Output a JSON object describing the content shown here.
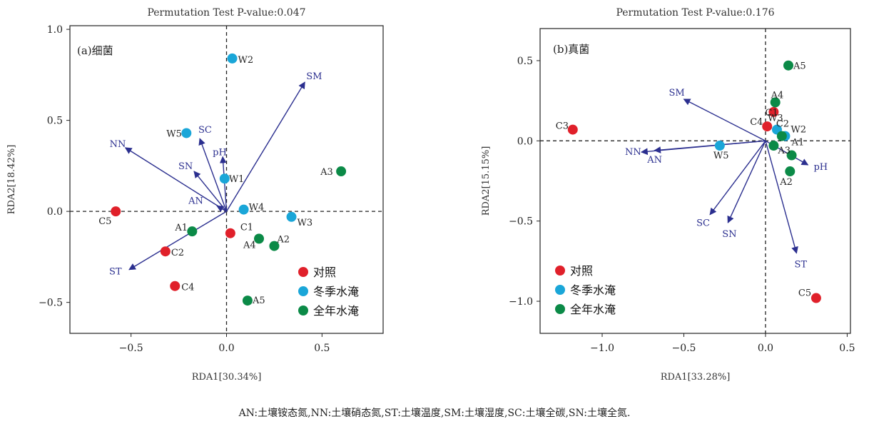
{
  "colors": {
    "control": "#e0202a",
    "winter": "#1aa6d8",
    "yearround": "#0b8a47",
    "vector": "#2b2f8f"
  },
  "chart_data": [
    {
      "type": "scatter",
      "title": "Permutation Test P-value:0.047",
      "panel_label": "(a)细菌",
      "xlabel": "RDA1[30.34%]",
      "ylabel": "RDA2[18.42%]",
      "xlim": [
        -0.82,
        0.82
      ],
      "ylim": [
        -0.67,
        1.02
      ],
      "xticks": [
        -0.5,
        0.0,
        0.5
      ],
      "xtick_labels": [
        "−0.5",
        "0.0",
        "0.5"
      ],
      "yticks": [
        -0.5,
        0.0,
        0.5,
        1.0
      ],
      "ytick_labels": [
        "−0.5",
        "0.0",
        "0.5",
        "1.0"
      ],
      "reference_lines": "dashed at x=0 and y=0",
      "legend_position": "bottom-right",
      "series": [
        {
          "name": "对照",
          "color_key": "control",
          "points": [
            {
              "label": "C1",
              "x": 0.02,
              "y": -0.12
            },
            {
              "label": "C2",
              "x": -0.32,
              "y": -0.22
            },
            {
              "label": "C4",
              "x": -0.27,
              "y": -0.41
            },
            {
              "label": "C5",
              "x": -0.58,
              "y": 0.0
            }
          ]
        },
        {
          "name": "冬季水淹",
          "color_key": "winter",
          "points": [
            {
              "label": "W1",
              "x": -0.01,
              "y": 0.18
            },
            {
              "label": "W2",
              "x": 0.03,
              "y": 0.84
            },
            {
              "label": "W3",
              "x": 0.34,
              "y": -0.03
            },
            {
              "label": "W4",
              "x": 0.09,
              "y": 0.01
            },
            {
              "label": "W5",
              "x": -0.21,
              "y": 0.43
            }
          ]
        },
        {
          "name": "全年水淹",
          "color_key": "yearround",
          "points": [
            {
              "label": "A1",
              "x": -0.18,
              "y": -0.11
            },
            {
              "label": "A2",
              "x": 0.25,
              "y": -0.19
            },
            {
              "label": "A3",
              "x": 0.6,
              "y": 0.22
            },
            {
              "label": "A4",
              "x": 0.17,
              "y": -0.15
            },
            {
              "label": "A5",
              "x": 0.11,
              "y": -0.49
            }
          ]
        }
      ],
      "vectors": [
        {
          "label": "SM",
          "x": 0.41,
          "y": 0.71
        },
        {
          "label": "NN",
          "x": -0.53,
          "y": 0.35
        },
        {
          "label": "SC",
          "x": -0.14,
          "y": 0.4
        },
        {
          "label": "pH",
          "x": -0.02,
          "y": 0.3
        },
        {
          "label": "SN",
          "x": -0.17,
          "y": 0.22
        },
        {
          "label": "AN",
          "x": -0.05,
          "y": 0.03
        },
        {
          "label": "ST",
          "x": -0.51,
          "y": -0.32
        }
      ]
    },
    {
      "type": "scatter",
      "title": "Permutation Test P-value:0.176",
      "panel_label": "(b)真菌",
      "xlabel": "RDA1[33.28%]",
      "ylabel": "RDA2[15.15%]",
      "xlim": [
        -1.38,
        0.52
      ],
      "ylim": [
        -1.2,
        0.7
      ],
      "xticks": [
        -1.0,
        -0.5,
        0.0,
        0.5
      ],
      "xtick_labels": [
        "−1.0",
        "−0.5",
        "0.0",
        "0.5"
      ],
      "yticks": [
        -1.0,
        -0.5,
        0.0,
        0.5
      ],
      "ytick_labels": [
        "−1.0",
        "−0.5",
        "0.0",
        "0.5"
      ],
      "reference_lines": "dashed at x=0 and y=0",
      "legend_position": "bottom-left",
      "series": [
        {
          "name": "对照",
          "color_key": "control",
          "points": [
            {
              "label": "C1",
              "x": 0.05,
              "y": 0.18
            },
            {
              "label": "C3",
              "x": -1.18,
              "y": 0.07
            },
            {
              "label": "C4",
              "x": 0.01,
              "y": 0.09
            },
            {
              "label": "C5",
              "x": 0.31,
              "y": -0.98
            }
          ]
        },
        {
          "name": "冬季水淹",
          "color_key": "winter",
          "points": [
            {
              "label": "W2",
              "x": 0.12,
              "y": 0.03
            },
            {
              "label": "W3",
              "x": 0.07,
              "y": 0.07
            },
            {
              "label": "W5",
              "x": -0.28,
              "y": -0.03
            }
          ]
        },
        {
          "name": "全年水淹",
          "color_key": "yearround",
          "points": [
            {
              "label": "A1",
              "x": 0.16,
              "y": -0.09
            },
            {
              "label": "A2",
              "x": 0.15,
              "y": -0.19
            },
            {
              "label": "A3",
              "x": 0.05,
              "y": -0.03
            },
            {
              "label": "A4",
              "x": 0.06,
              "y": 0.24
            },
            {
              "label": "A5",
              "x": 0.14,
              "y": 0.47
            },
            {
              "label": "C2",
              "x": 0.1,
              "y": 0.03
            }
          ]
        }
      ],
      "vectors": [
        {
          "label": "SM",
          "x": -0.5,
          "y": 0.26
        },
        {
          "label": "NN",
          "x": -0.76,
          "y": -0.07
        },
        {
          "label": "AN",
          "x": -0.68,
          "y": -0.06
        },
        {
          "label": "SC",
          "x": -0.34,
          "y": -0.46
        },
        {
          "label": "SN",
          "x": -0.23,
          "y": -0.51
        },
        {
          "label": "ST",
          "x": 0.19,
          "y": -0.7
        },
        {
          "label": "pH",
          "x": 0.26,
          "y": -0.15
        }
      ]
    }
  ],
  "footnote": "AN:土壤铵态氮,NN:土壤硝态氮,ST:土壤温度,SM:土壤湿度,SC:土壤全碳,SN:土壤全氮."
}
